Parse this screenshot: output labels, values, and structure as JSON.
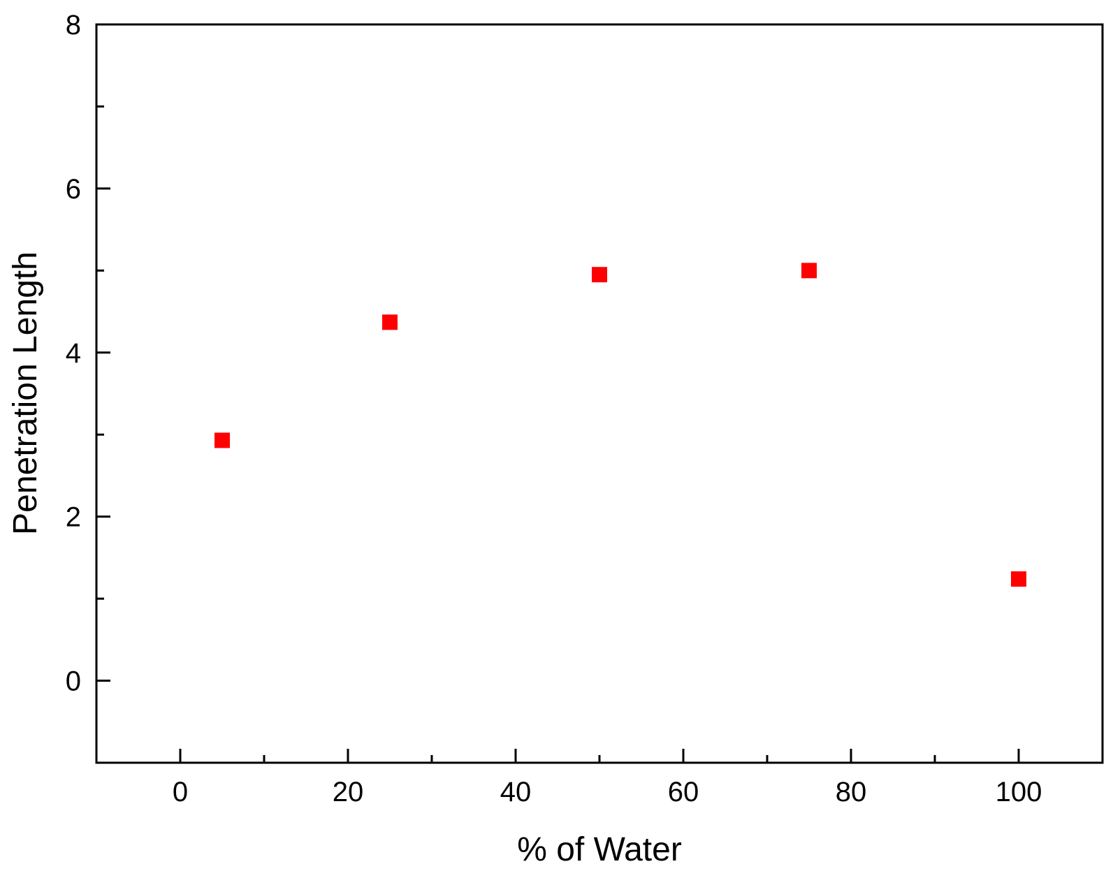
{
  "chart_data": {
    "type": "scatter",
    "title": "",
    "xlabel": "% of Water",
    "ylabel": "Penetration Length",
    "xlim": [
      -10,
      110
    ],
    "ylim": [
      -1,
      8
    ],
    "x_ticks": [
      0,
      20,
      40,
      60,
      80,
      100
    ],
    "x_minor_ticks": [
      10,
      30,
      50,
      70,
      90
    ],
    "y_ticks": [
      0,
      2,
      4,
      6,
      8
    ],
    "y_minor_ticks": [
      1,
      3,
      5,
      7
    ],
    "grid": false,
    "marker": "square",
    "marker_color": "#ff0000",
    "series": [
      {
        "x": [
          5,
          25,
          50,
          75,
          100
        ],
        "y": [
          2.93,
          4.37,
          4.95,
          5.0,
          1.24
        ]
      }
    ]
  }
}
